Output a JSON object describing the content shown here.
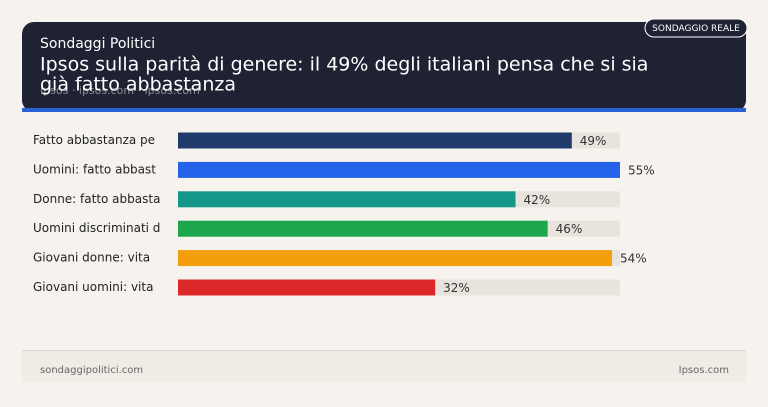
{
  "header": {
    "site": "Sondaggi Politici",
    "title_lines": [
      "Ipsos sulla parità di genere: il 49% degli italiani pensa che si sia",
      "già fatto abbastanza"
    ],
    "source": "Ipsos · ipsos.com · ipsos.com",
    "badge": "SONDAGGIO REALE"
  },
  "chart_data": {
    "type": "bar",
    "orientation": "horizontal",
    "categories": [
      "Fatto abbastanza pe",
      "Uomini: fatto abbast",
      "Donne: fatto abbasta",
      "Uomini discriminati d",
      "Giovani donne: vita",
      "Giovani uomini: vita"
    ],
    "values": [
      49,
      55,
      42,
      46,
      54,
      32
    ],
    "value_labels": [
      "49%",
      "55%",
      "42%",
      "46%",
      "54%",
      "32%"
    ],
    "colors": [
      "#1f3a6b",
      "#2563eb",
      "#14968a",
      "#1ea64c",
      "#f59e0b",
      "#dc2828"
    ]
  },
  "footer": {
    "left": "sondaggipolitici.com",
    "right": "Ipsos.com"
  }
}
